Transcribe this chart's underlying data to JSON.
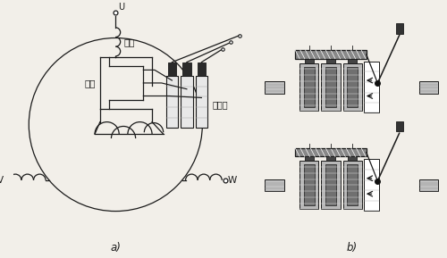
{
  "bg_color": "#f2efe9",
  "line_color": "#1a1a1a",
  "label_a": "a)",
  "label_b": "b)",
  "label_U": "U",
  "label_V": "V",
  "label_W": "W",
  "label_stator": "定子",
  "label_rotor": "转子",
  "label_slip": "集电环",
  "fig_w": 5.0,
  "fig_h": 2.89,
  "dpi": 100
}
